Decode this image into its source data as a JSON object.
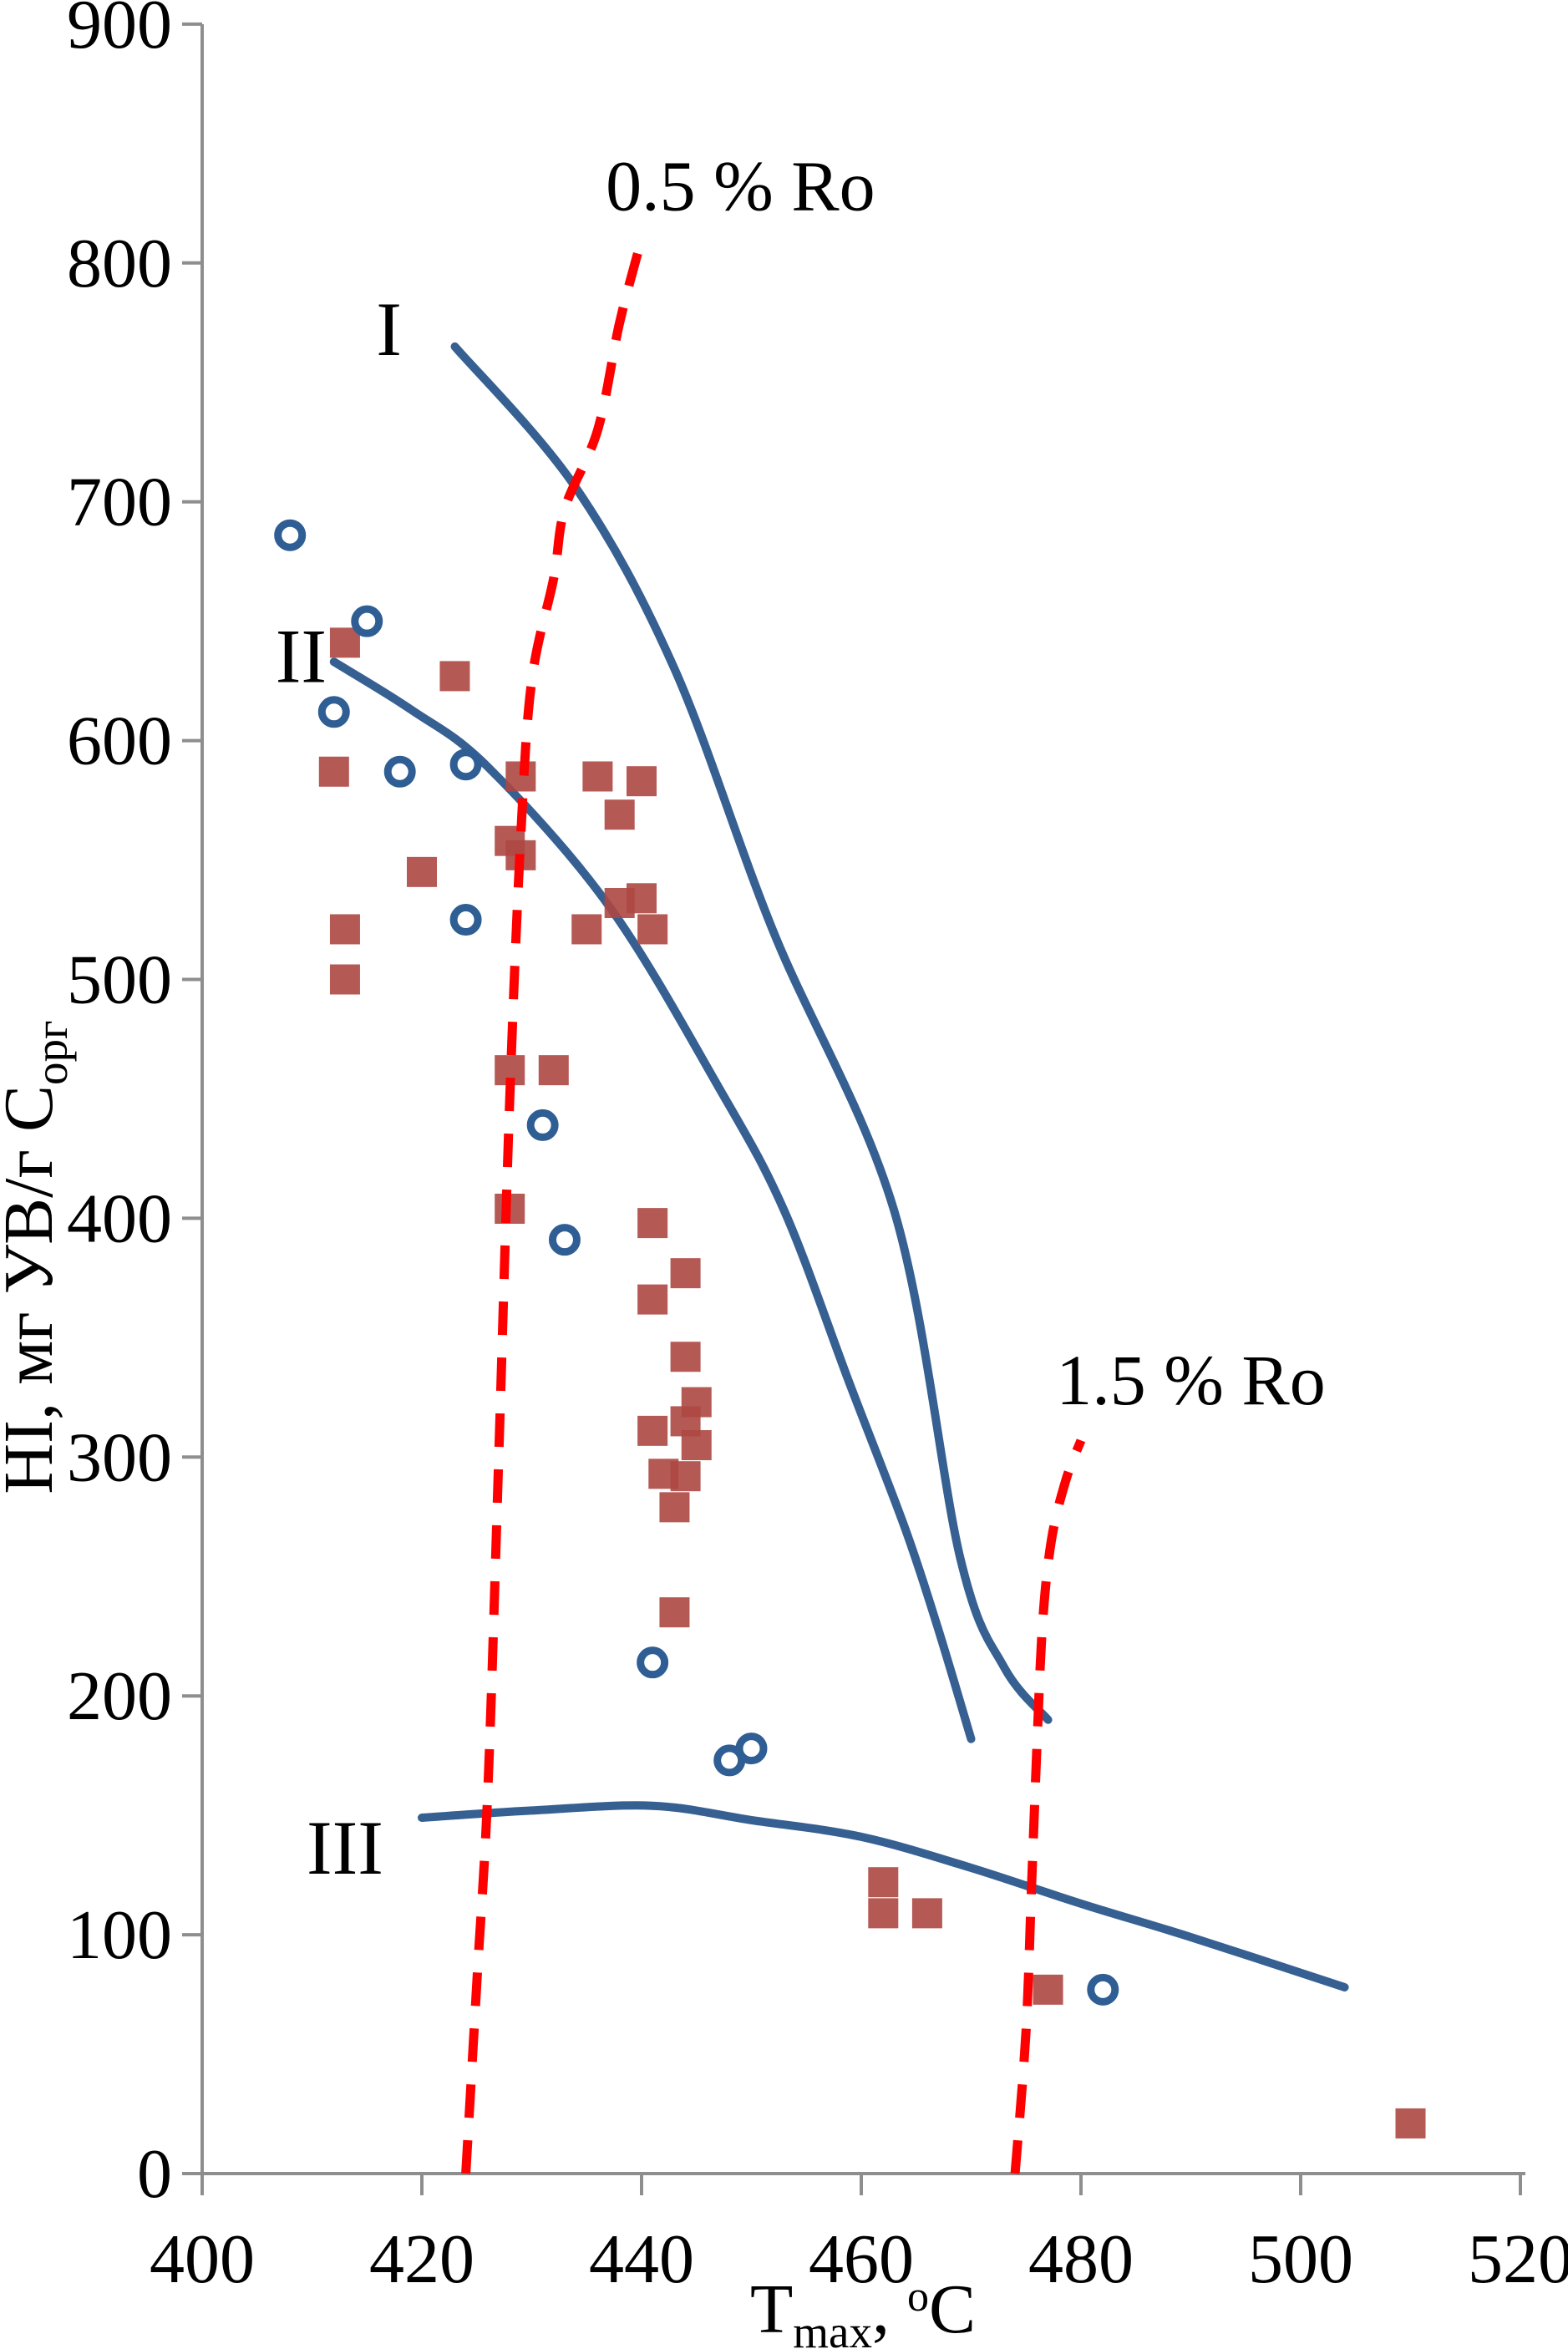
{
  "chart_data": {
    "type": "scatter",
    "title": "",
    "xlabel": "Tmax, oC",
    "ylabel": "HI, мг УВ/г Сорг",
    "xlabel_parts": {
      "base": "T",
      "sub": "max",
      "mid": ", ",
      "sup": "o",
      "end": "C"
    },
    "ylabel_parts": {
      "base": "HI, мг УВ/г С",
      "sub": "орг"
    },
    "xlim": [
      400,
      520
    ],
    "ylim": [
      0,
      900
    ],
    "xticks": [
      400,
      420,
      440,
      460,
      480,
      500,
      520
    ],
    "yticks": [
      0,
      100,
      200,
      300,
      400,
      500,
      600,
      700,
      800,
      900
    ],
    "grid": false,
    "legend": null,
    "axis_color": "#8e8e8e",
    "series": [
      {
        "name": "samples-squares",
        "marker": "square",
        "color": "#AD4742",
        "points": [
          [
            413,
            641
          ],
          [
            423,
            627
          ],
          [
            412,
            587
          ],
          [
            429,
            585
          ],
          [
            436,
            585
          ],
          [
            440,
            583
          ],
          [
            438,
            569
          ],
          [
            428,
            558
          ],
          [
            429,
            552
          ],
          [
            420,
            545
          ],
          [
            438,
            532
          ],
          [
            440,
            534
          ],
          [
            435,
            521
          ],
          [
            441,
            521
          ],
          [
            413,
            521
          ],
          [
            413,
            500
          ],
          [
            428,
            462
          ],
          [
            432,
            462
          ],
          [
            428,
            404
          ],
          [
            441,
            398
          ],
          [
            444,
            377
          ],
          [
            441,
            366
          ],
          [
            444,
            342
          ],
          [
            445,
            323
          ],
          [
            444,
            315
          ],
          [
            441,
            311
          ],
          [
            445,
            305
          ],
          [
            442,
            293
          ],
          [
            444,
            292
          ],
          [
            443,
            279
          ],
          [
            443,
            235
          ],
          [
            462,
            122
          ],
          [
            462,
            109
          ],
          [
            466,
            109
          ],
          [
            477,
            77
          ],
          [
            510,
            21
          ]
        ]
      },
      {
        "name": "samples-open-circles",
        "marker": "open-circle",
        "color": "#2E5E93",
        "points": [
          [
            408,
            686
          ],
          [
            415,
            650
          ],
          [
            412,
            612
          ],
          [
            418,
            587
          ],
          [
            424,
            590
          ],
          [
            424,
            525
          ],
          [
            431,
            439
          ],
          [
            433,
            391
          ],
          [
            441,
            214
          ],
          [
            448,
            173
          ],
          [
            450,
            178
          ],
          [
            482,
            77
          ]
        ]
      }
    ],
    "curves": [
      {
        "name": "kerogen-type-I",
        "label": "I",
        "label_pos": [
          417,
          772
        ],
        "color": "#376092",
        "points": [
          [
            423,
            765
          ],
          [
            434,
            706
          ],
          [
            443,
            630
          ],
          [
            452,
            520
          ],
          [
            463,
            403
          ],
          [
            469,
            258
          ],
          [
            473,
            212
          ],
          [
            477,
            190
          ]
        ]
      },
      {
        "name": "kerogen-type-II",
        "label": "II",
        "label_pos": [
          409,
          635
        ],
        "color": "#376092",
        "points": [
          [
            412,
            633
          ],
          [
            419,
            613
          ],
          [
            426,
            589
          ],
          [
            437,
            531
          ],
          [
            447,
            455
          ],
          [
            453,
            403
          ],
          [
            459,
            330
          ],
          [
            464,
            270
          ],
          [
            467,
            228
          ],
          [
            470,
            182
          ]
        ]
      },
      {
        "name": "kerogen-type-III",
        "label": "III",
        "label_pos": [
          413,
          136
        ],
        "color": "#376092",
        "points": [
          [
            420,
            149
          ],
          [
            430,
            152
          ],
          [
            441,
            154
          ],
          [
            450,
            148
          ],
          [
            460,
            141
          ],
          [
            470,
            128
          ],
          [
            480,
            113
          ],
          [
            490,
            99
          ],
          [
            504,
            78
          ]
        ]
      }
    ],
    "ro_lines": [
      {
        "name": "ro-0.5",
        "label": "0.5 % Ro",
        "label_pos": [
          449,
          832
        ],
        "color": "#FF0000",
        "points": [
          [
            424,
            0
          ],
          [
            425,
            80
          ],
          [
            426,
            160
          ],
          [
            427,
            300
          ],
          [
            428,
            450
          ],
          [
            429,
            560
          ],
          [
            430,
            625
          ],
          [
            432,
            668
          ],
          [
            433,
            697
          ],
          [
            436,
            730
          ],
          [
            438,
            775
          ],
          [
            440,
            810
          ]
        ]
      },
      {
        "name": "ro-1.5",
        "label": "1.5 % Ro",
        "label_pos": [
          490,
          332
        ],
        "color": "#FF0000",
        "points": [
          [
            474,
            0
          ],
          [
            475,
            60
          ],
          [
            475.5,
            120
          ],
          [
            476,
            180
          ],
          [
            476.5,
            230
          ],
          [
            477.3,
            265
          ],
          [
            478.6,
            290
          ],
          [
            480,
            307
          ]
        ]
      }
    ]
  }
}
